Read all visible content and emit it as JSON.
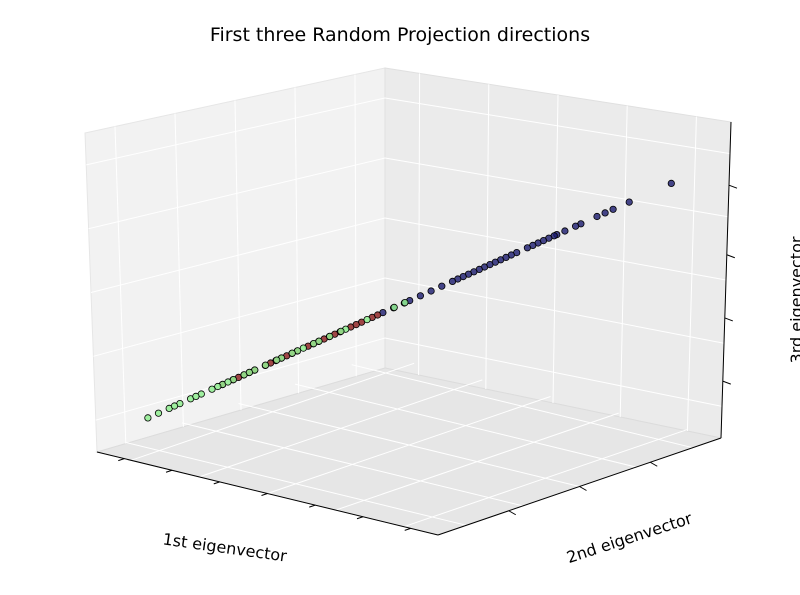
{
  "chart_data": {
    "type": "scatter",
    "title": "First three Random Projection directions",
    "xlabel": "1st eigenvector",
    "ylabel": "2nd eigenvector",
    "zlabel": "3rd eigenvector",
    "xlim": [
      -1,
      1
    ],
    "ylim": [
      -1,
      1
    ],
    "zlim": [
      -1,
      1
    ],
    "grid": true,
    "projection": "3d",
    "series": [
      {
        "class_id": 0,
        "color": "#1a1a6e",
        "points": [
          [
            0.98,
            0.92,
            0.9
          ],
          [
            0.82,
            0.8,
            0.77
          ],
          [
            0.76,
            0.74,
            0.7
          ],
          [
            0.73,
            0.71,
            0.67
          ],
          [
            0.7,
            0.68,
            0.64
          ],
          [
            0.64,
            0.62,
            0.57
          ],
          [
            0.58,
            0.56,
            0.51
          ],
          [
            0.55,
            0.53,
            0.48
          ],
          [
            0.54,
            0.52,
            0.47
          ],
          [
            0.52,
            0.5,
            0.45
          ],
          [
            0.48,
            0.46,
            0.41
          ],
          [
            0.46,
            0.44,
            0.39
          ],
          [
            0.4,
            0.38,
            0.33
          ],
          [
            0.38,
            0.36,
            0.31
          ],
          [
            0.34,
            0.32,
            0.27
          ],
          [
            0.32,
            0.3,
            0.25
          ],
          [
            0.28,
            0.26,
            0.21
          ],
          [
            0.26,
            0.24,
            0.19
          ],
          [
            0.24,
            0.22,
            0.17
          ],
          [
            0.22,
            0.2,
            0.15
          ],
          [
            0.2,
            0.18,
            0.13
          ],
          [
            0.18,
            0.16,
            0.11
          ],
          [
            0.12,
            0.1,
            0.05
          ],
          [
            0.08,
            0.06,
            0.01
          ],
          [
            0.04,
            0.02,
            -0.03
          ],
          [
            0.0,
            -0.02,
            -0.07
          ],
          [
            -0.06,
            -0.08,
            -0.13
          ],
          [
            -0.1,
            -0.12,
            -0.17
          ],
          [
            0.5,
            0.48,
            0.43
          ],
          [
            0.44,
            0.42,
            0.37
          ],
          [
            0.3,
            0.28,
            0.23
          ],
          [
            0.16,
            0.14,
            0.09
          ],
          [
            0.62,
            0.6,
            0.55
          ],
          [
            0.36,
            0.34,
            0.29
          ],
          [
            -0.02,
            -0.04,
            -0.09
          ]
        ]
      },
      {
        "class_id": 1,
        "color": "#8b1a1a",
        "points": [
          [
            -0.14,
            -0.16,
            -0.21
          ],
          [
            -0.18,
            -0.2,
            -0.25
          ],
          [
            -0.22,
            -0.24,
            -0.29
          ],
          [
            -0.26,
            -0.28,
            -0.33
          ],
          [
            -0.3,
            -0.32,
            -0.37
          ],
          [
            -0.34,
            -0.36,
            -0.41
          ],
          [
            -0.38,
            -0.4,
            -0.45
          ],
          [
            -0.42,
            -0.44,
            -0.49
          ],
          [
            -0.46,
            -0.48,
            -0.53
          ],
          [
            -0.5,
            -0.52,
            -0.57
          ],
          [
            -0.54,
            -0.56,
            -0.61
          ],
          [
            -0.58,
            -0.6,
            -0.65
          ],
          [
            -0.62,
            -0.64,
            -0.69
          ],
          [
            -0.66,
            -0.68,
            -0.73
          ],
          [
            -0.7,
            -0.72,
            -0.77
          ],
          [
            -0.2,
            -0.22,
            -0.27
          ],
          [
            -0.28,
            -0.3,
            -0.35
          ],
          [
            -0.36,
            -0.38,
            -0.43
          ],
          [
            -0.44,
            -0.46,
            -0.51
          ],
          [
            -0.52,
            -0.54,
            -0.59
          ],
          [
            -0.6,
            -0.62,
            -0.67
          ],
          [
            -0.32,
            -0.34,
            -0.39
          ],
          [
            -0.48,
            -0.5,
            -0.55
          ],
          [
            -0.64,
            -0.66,
            -0.71
          ],
          [
            -0.12,
            -0.14,
            -0.19
          ]
        ]
      },
      {
        "class_id": 2,
        "color": "#90ee90",
        "points": [
          [
            -0.02,
            -0.04,
            -0.02
          ],
          [
            -0.06,
            -0.08,
            -0.06
          ],
          [
            -0.16,
            -0.18,
            -0.2
          ],
          [
            -0.24,
            -0.26,
            -0.28
          ],
          [
            -0.3,
            -0.32,
            -0.34
          ],
          [
            -0.36,
            -0.38,
            -0.4
          ],
          [
            -0.42,
            -0.44,
            -0.46
          ],
          [
            -0.48,
            -0.5,
            -0.52
          ],
          [
            -0.54,
            -0.56,
            -0.58
          ],
          [
            -0.58,
            -0.6,
            -0.62
          ],
          [
            -0.62,
            -0.64,
            -0.66
          ],
          [
            -0.66,
            -0.68,
            -0.7
          ],
          [
            -0.7,
            -0.72,
            -0.74
          ],
          [
            -0.74,
            -0.76,
            -0.78
          ],
          [
            -0.78,
            -0.8,
            -0.82
          ],
          [
            -0.82,
            -0.84,
            -0.86
          ],
          [
            -0.86,
            -0.88,
            -0.9
          ],
          [
            -0.9,
            -0.92,
            -0.94
          ],
          [
            -0.94,
            -0.96,
            -0.98
          ],
          [
            -0.98,
            -1.0,
            -1.0
          ],
          [
            -0.72,
            -0.74,
            -0.7
          ],
          [
            -0.5,
            -0.52,
            -0.48
          ],
          [
            -0.4,
            -0.42,
            -0.38
          ],
          [
            -0.26,
            -0.28,
            -0.24
          ],
          [
            -0.8,
            -0.82,
            -0.84
          ],
          [
            -0.88,
            -0.9,
            -0.92
          ],
          [
            -0.6,
            -0.62,
            -0.64
          ],
          [
            -0.44,
            -0.46,
            -0.48
          ],
          [
            -0.34,
            -0.36,
            -0.38
          ],
          [
            -0.68,
            -0.7,
            -0.72
          ]
        ]
      }
    ]
  }
}
